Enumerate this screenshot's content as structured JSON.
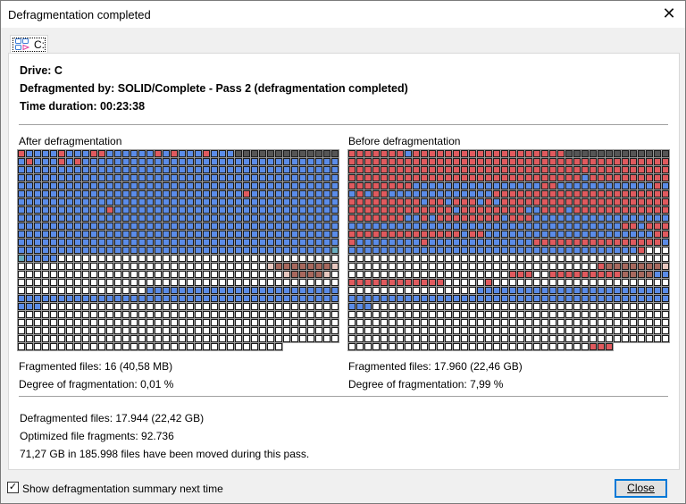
{
  "window": {
    "title": "Defragmentation completed",
    "close_icon": "close-icon"
  },
  "tab": {
    "label": "C:",
    "icon": "drive-map-icon"
  },
  "summary": {
    "drive": "Drive: C",
    "defragmented_by": "Defragmented by: SOLID/Complete - Pass 2 (defragmentation completed)",
    "time_duration": "Time duration: 00:23:38"
  },
  "colors": {
    "B": "#5b8ce8",
    "R": "#e05a5e",
    "W": "#ffffff",
    "D": "#555555",
    "M": "#a8695e",
    "P": "#e8c8c0",
    "G": "#6aaec0",
    "accent": "#0078d7"
  },
  "after": {
    "label": "After defragmentation",
    "fragmented_files": "Fragmented files: 16 (40,58 MB)",
    "degree": "Degree of fragmentation: 0,01 %",
    "map": [
      "RBBBBRBBBRRBBBBBBRBRBBBRBBBDDDDDDDDDDDDD",
      "BRBBBRBRBBBBBBBBBBBBBBBBBBBBBBBBBBBBBBBB",
      "BBBBBBBBBBBBBBBBBBBBBBBBBBBBBBBBBBBBBBBB",
      "BBBBBBBBBBBBBBBBBBBBBBBBBBBBBBBBBBBBBBBB",
      "BBBBBBBBBBBBBBBBBBBBBBBBBBBBBBBBBBBBBBBB",
      "BBBBBBBBBBBBBBBBBBBBBBBBBBBBRBBBBBBBBBBB",
      "BBBBBBBBBBBBBBBBBBBBBBBBBBBBBBBBBBBBBBBB",
      "BBBBBBBBBBBRBBBBBBBBBBBBBBBBBBBBBBBBBBBB",
      "BBBBBBBBBBBBBBBBBBBBBBBBBBBBBBBBBBBBBBBB",
      "BBBBBBBBBBBBBBBBBBBBBBBBBBBBBBBBBBBBBBBB",
      "BBBBBBBBBBBBBBBBBBBBBBBBBBBBBBBBBBBBBBBB",
      "BBBBBBBBBBBBBBBBBBBBBBBBBBBBBBBBBBBBBBBB",
      "BBBBBBBBBBBBBBBBBBBBBBBBBBBBBBBBBBBBBBBG",
      "GBBBBWWWWWWWWWWWWWWWWWWWWWWWWWWWWWWWWWWW",
      "WWWWWWWWWWWWWWWWWWWWWWWWWWWWWWWPMMMMMMMP",
      "WWWWWWWWWWWWWWWWWWWWWWWWWWWWWWWWWPMMMMPW",
      "WWWWWWWWWWWWWWWWWWWWWWWWWWWWWWWWWWWWWWWW",
      "WWWWWWWWWWWWWWWWBBBBBBBBBBBBBBBBBBBBBBBB",
      "BBBBBBBBBBBBBBBBBBBBBBBBBBBBBBBBBBBBBBBB",
      "BBBWWWWWWWWWWWWWWWWWWWWWWWWWWWWWWWWWWWWW",
      "WWWWWWWWWWWWWWWWWWWWWWWWWWWWWWWWWWWWWWWW",
      "WWWWWWWWWWWWWWWWWWWWWWWWWWWWWWWWWWWWWWWW",
      "WWWWWWWWWWWWWWWWWWWWWWWWWWWWWWWWWWWWWWWW",
      "WWWWWWWWWWWWWWWWWWWWWWWWWWWWWWWWWWWWWWWW",
      "WWWWWWWWWWWWWWWWWWWWWWWWWWWWWWWWW"
    ]
  },
  "before": {
    "label": "Before defragmentation",
    "fragmented_files": "Fragmented files: 17.960 (22,46 GB)",
    "degree": "Degree of fragmentation: 7,99 %",
    "map": [
      "RRRRRRRBRRRRRRRRRRRRRRRRRRRDDDDDDDDDDDDD",
      "RRRRRRRRRRRRRRRRRRRRRRRRRRRRRRRRRRRRRRRR",
      "RRRRRRRRRRRRRRRRRRRRRRRRRRRRRRRRRRRRRRRR",
      "RRRRRRRRRRRRRRRRRRRRRRRRRRRRRBRRRRRRRRRR",
      "RRRRRRRRBBBBBBBBBBBBBBBBRRBBBBBBBBBBBBRB",
      "BRBRRBBBBBBBBBBBBBRRRRRRRRRRRRRRRRRRRRRR",
      "RRRRRRRRRBRRBRRRBRBRRRRRRRRRRRRRRRRRRRRR",
      "RRRRRRRRRRRRRBRRRRRRRRBBRRRBRRRRRRRRRRRR",
      "RRRRRRRBBRBRRRRRRRRBRRRBBBBBBBBBBBBBBBBB",
      "BBBBBBBBBBBBBBBBBBBBBBBBBBBBBBBBBBRRBRRR",
      "RRRRRRRRRRRRRRBRRBBBBBBBBBBBBBBBBBBBBBRR",
      "RBBBBBBBBRBBBBBBBBBBBBBRRRRRRRRRRRRRRRRB",
      "BBBBBBBBBBBBBBBBBBBBBBBBBBBBBBBBBBBBRWWW",
      "WWWWWWWWWWWWWWWWWWWWWWWWWWWWWWWWWWWWWWWW",
      "WWWWWWWWWWWWWWWWWWWWWWWWWWWWWWWRMMMMMMMP",
      "WWWWWWWWWWWWWWWWWWWWRRRWWRRRRRRRRRMMMMBB",
      "RRRRRRRRRRRRWWWWWRWWWWWWWWWWWWWWWWWWWWWW",
      "WWWWWWWWWWWWWWWWBBBBBBBBBBBBBBBBBBBBBBBB",
      "BBBBBBBBBBBBBBBBBBBBBBBBBBBBBBBBBBBBBBBB",
      "BBBWWWWWWWWWWWWWWWWWWWWWWWWWWWWWWWWWWWWW",
      "WWWWWWWWWWWWWWWWWWWWWWWWWWWWWWWWWWWWWWWW",
      "WWWWWWWWWWWWWWWWWWWWWWWWWWWWWWWWWWWWWWWW",
      "WWWWWWWWWWWWWWWWWWWWWWWWWWWWWWWWWWWWWWWW",
      "WWWWWWWWWWWWWWWWWWWWWWWWWWWWWWWWWWWWWWWW",
      "WWWWWWWWWWWWWWWWWWWWWWWWWWWWWWRRR"
    ]
  },
  "results": {
    "defragmented_files": "Defragmented files: 17.944 (22,42 GB)",
    "optimized_fragments": "Optimized file fragments: 92.736",
    "moved": "71,27 GB in 185.998 files have been moved during this pass."
  },
  "footer": {
    "show_summary_label": "Show defragmentation summary next time",
    "show_summary_checked": true,
    "close_label": "Close"
  }
}
